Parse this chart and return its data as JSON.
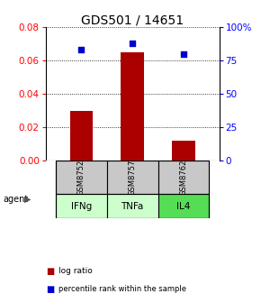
{
  "title": "GDS501 / 14651",
  "samples": [
    "GSM8752",
    "GSM8757",
    "GSM8762"
  ],
  "agents": [
    "IFNg",
    "TNFa",
    "IL4"
  ],
  "log_ratio": [
    0.03,
    0.065,
    0.012
  ],
  "percentile_rank": [
    83,
    88,
    80
  ],
  "ylim_left": [
    0,
    0.08
  ],
  "ylim_right": [
    0,
    100
  ],
  "yticks_left": [
    0,
    0.02,
    0.04,
    0.06,
    0.08
  ],
  "yticks_right": [
    0,
    25,
    50,
    75,
    100
  ],
  "ytick_labels_right": [
    "0",
    "25",
    "50",
    "75",
    "100%"
  ],
  "bar_color": "#aa0000",
  "dot_color": "#0000cc",
  "agent_colors": [
    "#ccffcc",
    "#ccffcc",
    "#55dd55"
  ],
  "sample_box_color": "#c8c8c8",
  "title_fontsize": 10,
  "tick_fontsize": 7.5,
  "bar_width": 0.45,
  "x_positions": [
    1,
    2,
    3
  ],
  "xlim": [
    0.3,
    3.7
  ]
}
